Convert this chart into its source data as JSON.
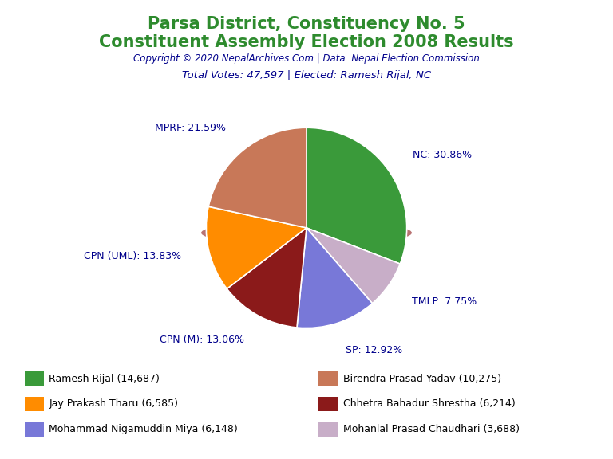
{
  "title1": "Parsa District, Constituency No. 5",
  "title2": "Constituent Assembly Election 2008 Results",
  "copyright": "Copyright © 2020 NepalArchives.Com | Data: Nepal Election Commission",
  "subtitle": "Total Votes: 47,597 | Elected: Ramesh Rijal, NC",
  "slices": [
    {
      "label": "NC",
      "pct": 30.86,
      "color": "#3a9a3a"
    },
    {
      "label": "TMLP",
      "pct": 7.75,
      "color": "#c8aec8"
    },
    {
      "label": "SP",
      "pct": 12.92,
      "color": "#7878d8"
    },
    {
      "label": "CPN (M)",
      "pct": 13.06,
      "color": "#8b1a1a"
    },
    {
      "label": "CPN (UML)",
      "pct": 13.83,
      "color": "#ff8c00"
    },
    {
      "label": "MPRF",
      "pct": 21.59,
      "color": "#c87858"
    }
  ],
  "legend_left": [
    {
      "label": "Ramesh Rijal (14,687)",
      "color": "#3a9a3a"
    },
    {
      "label": "Jay Prakash Tharu (6,585)",
      "color": "#ff8c00"
    },
    {
      "label": "Mohammad Nigamuddin Miya (6,148)",
      "color": "#7878d8"
    }
  ],
  "legend_right": [
    {
      "label": "Birendra Prasad Yadav (10,275)",
      "color": "#c87858"
    },
    {
      "label": "Chhetra Bahadur Shrestha (6,214)",
      "color": "#8b1a1a"
    },
    {
      "label": "Mohanlal Prasad Chaudhari (3,688)",
      "color": "#c8aec8"
    }
  ],
  "title_color": "#2e8b2e",
  "label_color": "#00008b",
  "background_color": "#ffffff"
}
